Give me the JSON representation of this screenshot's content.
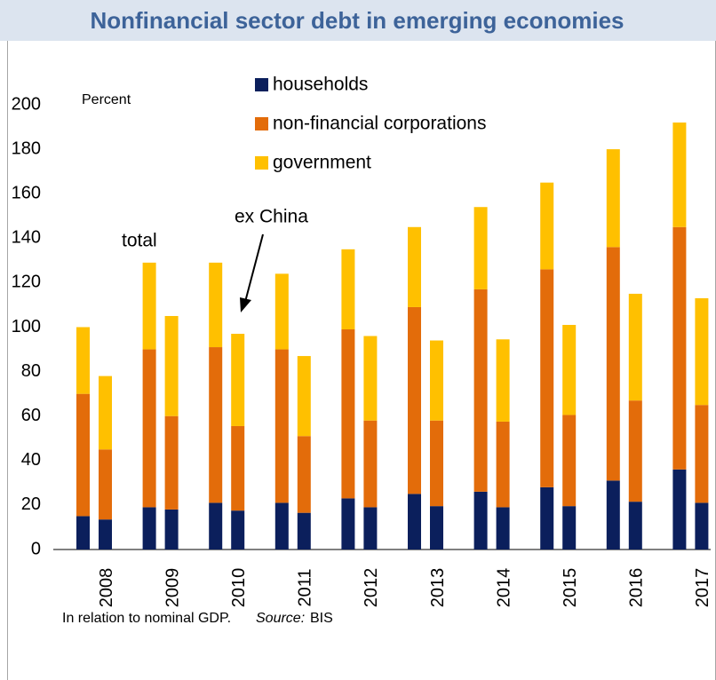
{
  "chart_data": {
    "type": "bar",
    "stacked": true,
    "title": "Nonfinancial sector debt in emerging economies",
    "y_label": "Percent",
    "annotations": {
      "total": "total",
      "ex_china": "ex China"
    },
    "note": "In relation to nominal GDP.",
    "source_label": "Source:",
    "source": "BIS",
    "categories": [
      null,
      "2008",
      null,
      "2009",
      null,
      "2010",
      null,
      "2011",
      null,
      "2012",
      null,
      "2013",
      null,
      "2014",
      null,
      "2015",
      null,
      "2016",
      null,
      "2017"
    ],
    "series": [
      {
        "name": "households",
        "color": "#0b1f5c",
        "values": [
          15,
          13.5,
          19,
          18,
          21,
          17.5,
          21,
          16.5,
          23,
          19,
          25,
          19.5,
          26,
          19,
          28,
          19.5,
          31,
          21.5,
          36,
          21
        ]
      },
      {
        "name": "non-financial corporations",
        "color": "#e36c0a",
        "values": [
          55,
          31.5,
          71,
          42,
          70,
          38,
          69,
          34.5,
          76,
          39,
          84,
          38.5,
          91,
          38.5,
          98,
          41,
          105,
          45.5,
          109,
          44
        ]
      },
      {
        "name": "government",
        "color": "#ffc000",
        "values": [
          30,
          33,
          39,
          45,
          38,
          41.5,
          34,
          36,
          36,
          38,
          36,
          36,
          37,
          37,
          39,
          40.5,
          44,
          48,
          47,
          48
        ]
      }
    ],
    "ylim": [
      0,
      200
    ],
    "yticks": [
      0,
      20,
      40,
      60,
      80,
      100,
      120,
      140,
      160,
      180,
      200
    ],
    "grid": false
  }
}
